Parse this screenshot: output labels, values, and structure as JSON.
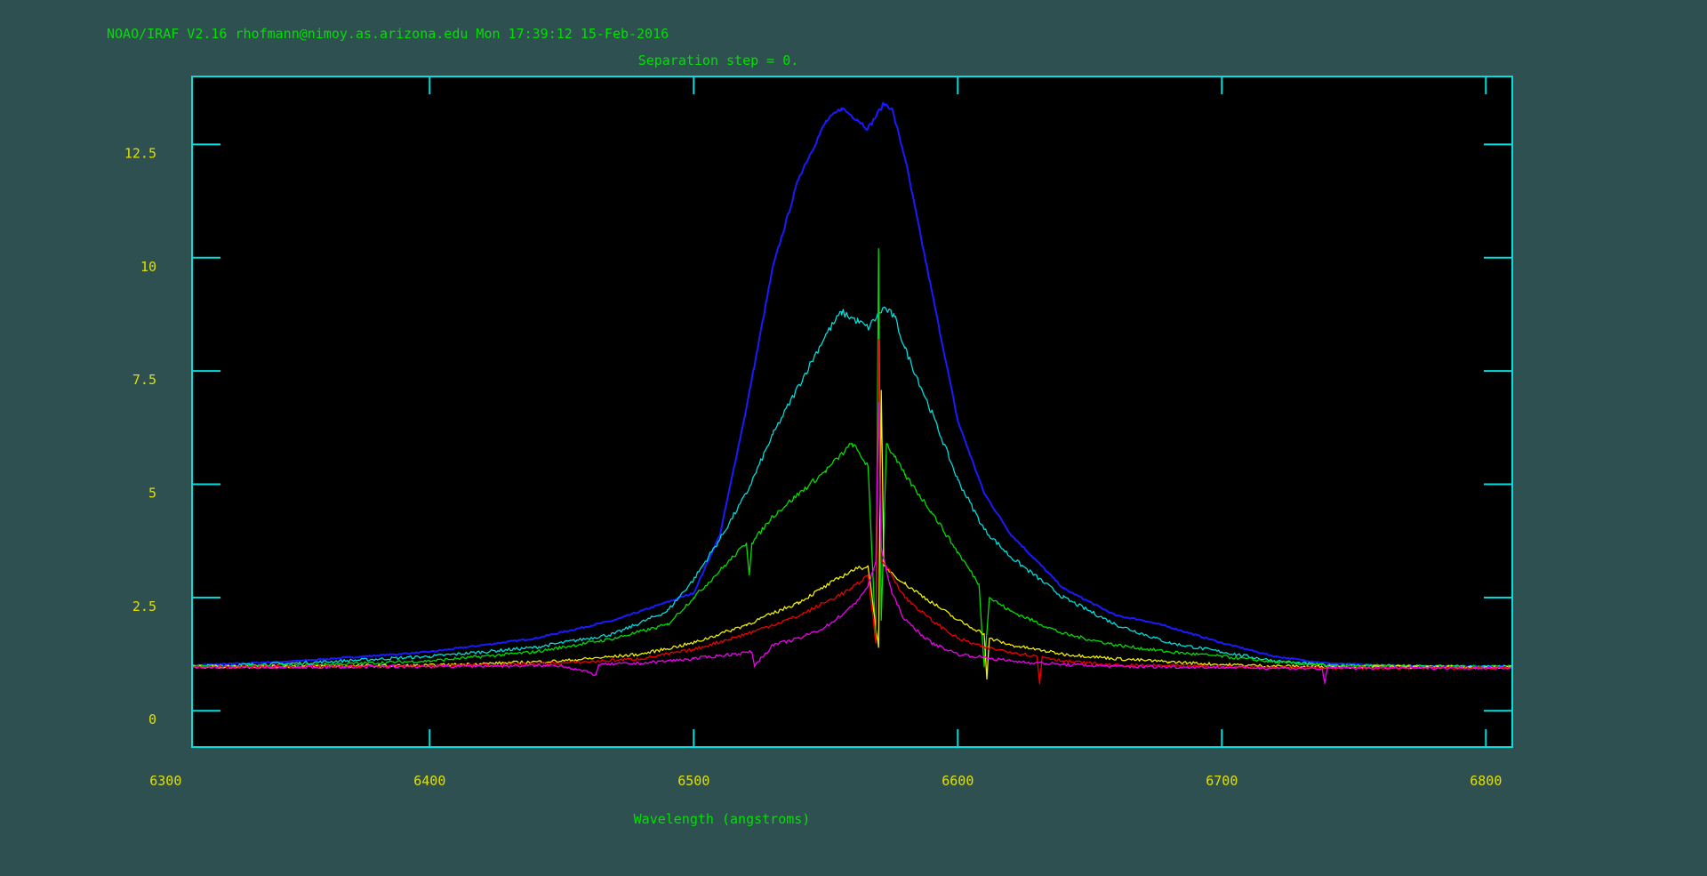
{
  "header": {
    "banner": "NOAO/IRAF V2.16 rhofmann@nimoy.as.arizona.edu Mon 17:39:12 15-Feb-2016",
    "subtitle": "Separation step = 0."
  },
  "colors": {
    "background": "#2f5050",
    "plot_background": "#000000",
    "frame": "#00e0e0",
    "text_green": "#00e000",
    "tick_labels": "#e0e000"
  },
  "chart_data": {
    "type": "line",
    "title": "Separation step = 0.",
    "xlabel": "Wavelength (angstroms)",
    "ylabel": "",
    "xlim": [
      6310,
      6810
    ],
    "ylim": [
      -0.8,
      14.0
    ],
    "grid": false,
    "legend": "none",
    "xticks": [
      6300,
      6400,
      6500,
      6600,
      6700,
      6800
    ],
    "xtick_labels": [
      "6300",
      "6400",
      "6500",
      "6600",
      "6700",
      "6800"
    ],
    "yticks": [
      0,
      2.5,
      5,
      7.5,
      10,
      12.5
    ],
    "ytick_labels": [
      "0",
      "2.5",
      "5",
      "7.5",
      "10",
      "12.5"
    ],
    "series": [
      {
        "color": "#1a1aff",
        "x": [
          6310,
          6350,
          6400,
          6440,
          6470,
          6500,
          6510,
          6520,
          6530,
          6540,
          6550,
          6556,
          6562,
          6566,
          6572,
          6575,
          6580,
          6590,
          6600,
          6610,
          6620,
          6640,
          6660,
          6670,
          6680,
          6700,
          6720,
          6740,
          6760,
          6810
        ],
        "values": [
          1.0,
          1.1,
          1.3,
          1.6,
          2.0,
          2.6,
          3.9,
          6.7,
          9.8,
          11.8,
          13.0,
          13.3,
          13.05,
          12.85,
          13.4,
          13.3,
          12.2,
          9.3,
          6.4,
          4.8,
          3.9,
          2.7,
          2.1,
          2.0,
          1.85,
          1.5,
          1.2,
          1.05,
          1.0,
          0.98
        ]
      },
      {
        "color": "#00dddd",
        "x": [
          6310,
          6350,
          6400,
          6440,
          6470,
          6490,
          6500,
          6510,
          6520,
          6530,
          6540,
          6550,
          6556,
          6562,
          6566,
          6572,
          6576,
          6580,
          6590,
          6600,
          6610,
          6620,
          6640,
          6660,
          6680,
          6700,
          6720,
          6740,
          6810
        ],
        "values": [
          0.98,
          1.05,
          1.2,
          1.4,
          1.7,
          2.2,
          2.9,
          3.8,
          4.8,
          6.1,
          7.2,
          8.3,
          8.8,
          8.6,
          8.45,
          8.9,
          8.7,
          8.0,
          6.6,
          5.1,
          4.0,
          3.4,
          2.5,
          1.9,
          1.5,
          1.3,
          1.1,
          1.0,
          0.97
        ]
      },
      {
        "color": "#00dd00",
        "x": [
          6310,
          6350,
          6400,
          6440,
          6470,
          6490,
          6500,
          6510,
          6520,
          6521,
          6522,
          6530,
          6540,
          6550,
          6560,
          6566,
          6569,
          6570,
          6571,
          6573,
          6576,
          6580,
          6590,
          6600,
          6608,
          6610,
          6612,
          6620,
          6640,
          6660,
          6680,
          6700,
          6720,
          6740,
          6810
        ],
        "values": [
          0.98,
          1.0,
          1.1,
          1.3,
          1.6,
          1.9,
          2.5,
          3.1,
          3.7,
          3.0,
          3.7,
          4.3,
          4.8,
          5.3,
          5.9,
          5.4,
          1.5,
          10.2,
          2.0,
          5.9,
          5.6,
          5.2,
          4.4,
          3.5,
          2.8,
          1.0,
          2.5,
          2.2,
          1.7,
          1.45,
          1.3,
          1.2,
          1.08,
          1.0,
          0.97
        ]
      },
      {
        "color": "#eeee00",
        "x": [
          6310,
          6350,
          6400,
          6450,
          6480,
          6500,
          6520,
          6540,
          6560,
          6566,
          6570,
          6571,
          6572,
          6574,
          6580,
          6590,
          6600,
          6610,
          6611,
          6612,
          6620,
          6640,
          6660,
          6680,
          6700,
          6720,
          6740,
          6810
        ],
        "values": [
          0.97,
          0.98,
          1.0,
          1.1,
          1.25,
          1.5,
          1.9,
          2.4,
          3.1,
          3.2,
          1.4,
          7.0,
          3.2,
          3.1,
          2.8,
          2.4,
          2.0,
          1.7,
          0.7,
          1.6,
          1.45,
          1.25,
          1.15,
          1.08,
          1.02,
          0.99,
          0.97,
          0.96
        ]
      },
      {
        "color": "#ee0000",
        "x": [
          6310,
          6350,
          6400,
          6450,
          6480,
          6500,
          6520,
          6540,
          6560,
          6566,
          6569,
          6570,
          6571,
          6573,
          6580,
          6590,
          6600,
          6610,
          6620,
          6630,
          6631,
          6632,
          6640,
          6660,
          6680,
          6700,
          6720,
          6740,
          6810
        ],
        "values": [
          0.96,
          0.97,
          0.99,
          1.05,
          1.15,
          1.35,
          1.7,
          2.1,
          2.7,
          3.0,
          1.5,
          8.2,
          3.3,
          3.2,
          2.5,
          2.0,
          1.6,
          1.4,
          1.3,
          1.2,
          0.6,
          1.2,
          1.1,
          1.0,
          1.0,
          0.97,
          0.96,
          0.95,
          0.95
        ]
      },
      {
        "color": "#ee00ee",
        "x": [
          6310,
          6350,
          6400,
          6450,
          6463,
          6464,
          6480,
          6500,
          6522,
          6523,
          6530,
          6540,
          6550,
          6560,
          6566,
          6569,
          6570,
          6571,
          6575,
          6580,
          6590,
          6600,
          6620,
          6640,
          6660,
          6700,
          6738,
          6739,
          6740,
          6810
        ],
        "values": [
          0.96,
          0.96,
          0.98,
          1.0,
          0.8,
          1.02,
          1.05,
          1.15,
          1.3,
          1.0,
          1.45,
          1.6,
          1.85,
          2.3,
          2.75,
          3.3,
          6.8,
          3.6,
          2.6,
          2.0,
          1.5,
          1.25,
          1.1,
          1.02,
          0.98,
          0.96,
          0.93,
          0.6,
          0.95,
          0.95
        ]
      }
    ]
  }
}
